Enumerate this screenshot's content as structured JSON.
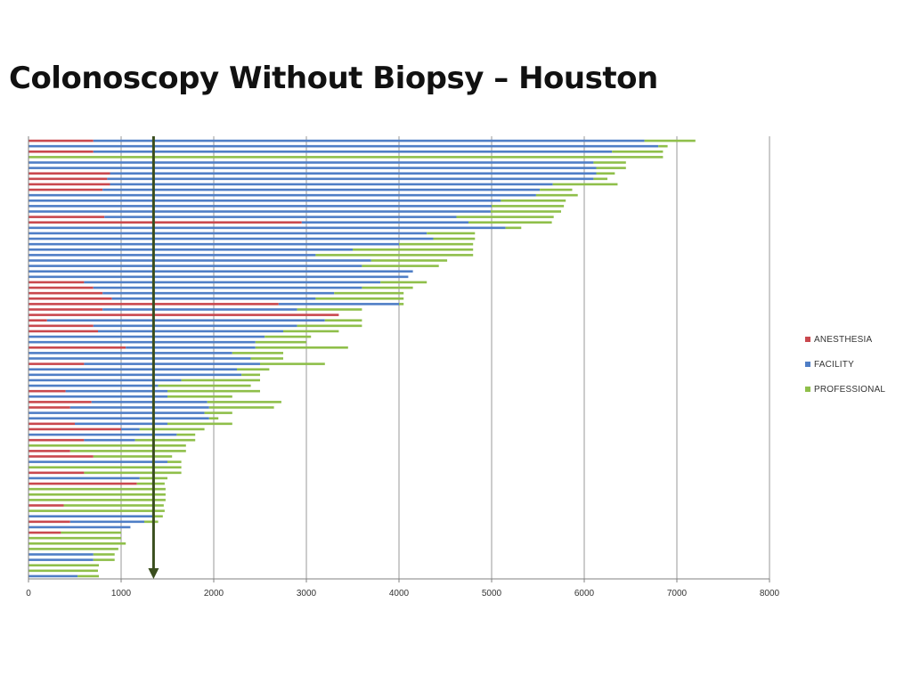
{
  "slide": {
    "title": "Colonoscopy Without Biopsy – Houston"
  },
  "colors": {
    "anesthesia": "#c9484e",
    "facility": "#4f7ec6",
    "professional": "#8fbf4a",
    "marker": "#3a4e1e",
    "grid": "#9a9a9a"
  },
  "chart_data": {
    "type": "bar",
    "orientation": "horizontal",
    "stacked": true,
    "title": "",
    "xlabel": "",
    "ylabel": "",
    "xlim": [
      0,
      8000
    ],
    "xticks": [
      "0",
      "1000",
      "2000",
      "3000",
      "4000",
      "5000",
      "6000",
      "7000",
      "8000"
    ],
    "grid": true,
    "legend_position": "right",
    "marker_line": {
      "x": 1350,
      "style": "arrow-down"
    },
    "series": [
      {
        "name": "ANESTHESIA",
        "color": "#c9484e",
        "values": [
          700,
          0,
          700,
          0,
          0,
          0,
          880,
          850,
          880,
          800,
          0,
          0,
          0,
          0,
          820,
          2950,
          0,
          0,
          0,
          0,
          0,
          0,
          0,
          0,
          0,
          0,
          600,
          700,
          800,
          900,
          2700,
          800,
          3350,
          200,
          700,
          750,
          0,
          0,
          1050,
          0,
          0,
          600,
          0,
          0,
          0,
          0,
          400,
          0,
          680,
          450,
          0,
          0,
          500,
          1000,
          0,
          600,
          0,
          450,
          700,
          0,
          0,
          600,
          0,
          1170,
          0,
          0,
          0,
          380,
          0,
          0,
          450,
          0,
          350,
          0,
          0,
          0,
          0,
          0,
          0,
          0,
          0
        ]
      },
      {
        "name": "FACILITY",
        "color": "#4f7ec6",
        "values": [
          5950,
          6800,
          5600,
          0,
          6100,
          6130,
          5250,
          5250,
          4780,
          4720,
          5480,
          5100,
          5000,
          4990,
          3800,
          1800,
          5150,
          4300,
          4370,
          4000,
          3500,
          3100,
          3700,
          3600,
          4150,
          4100,
          3200,
          2900,
          2500,
          2200,
          1300,
          2100,
          0,
          3000,
          2200,
          2000,
          2550,
          2450,
          1400,
          2200,
          2400,
          1900,
          2250,
          2300,
          1650,
          1400,
          1100,
          1500,
          1250,
          1500,
          1900,
          1950,
          1000,
          200,
          1600,
          550,
          0,
          0,
          0,
          1500,
          0,
          0,
          1200,
          0,
          0,
          0,
          0,
          0,
          0,
          1350,
          800,
          1100,
          0,
          0,
          0,
          0,
          700,
          700,
          0,
          0,
          530
        ]
      },
      {
        "name": "PROFESSIONAL",
        "color": "#8fbf4a",
        "values": [
          550,
          100,
          550,
          6850,
          350,
          320,
          200,
          150,
          700,
          350,
          450,
          700,
          780,
          760,
          1050,
          900,
          170,
          520,
          450,
          800,
          1300,
          1700,
          820,
          830,
          0,
          0,
          500,
          550,
          750,
          950,
          50,
          700,
          0,
          400,
          700,
          600,
          500,
          550,
          1000,
          550,
          350,
          700,
          350,
          200,
          850,
          1000,
          1000,
          700,
          800,
          700,
          300,
          100,
          700,
          700,
          200,
          650,
          1700,
          1250,
          850,
          150,
          1650,
          1050,
          300,
          300,
          1480,
          1480,
          1480,
          1080,
          1470,
          100,
          150,
          0,
          650,
          1000,
          1050,
          970,
          230,
          230,
          760,
          750,
          230
        ]
      }
    ]
  }
}
